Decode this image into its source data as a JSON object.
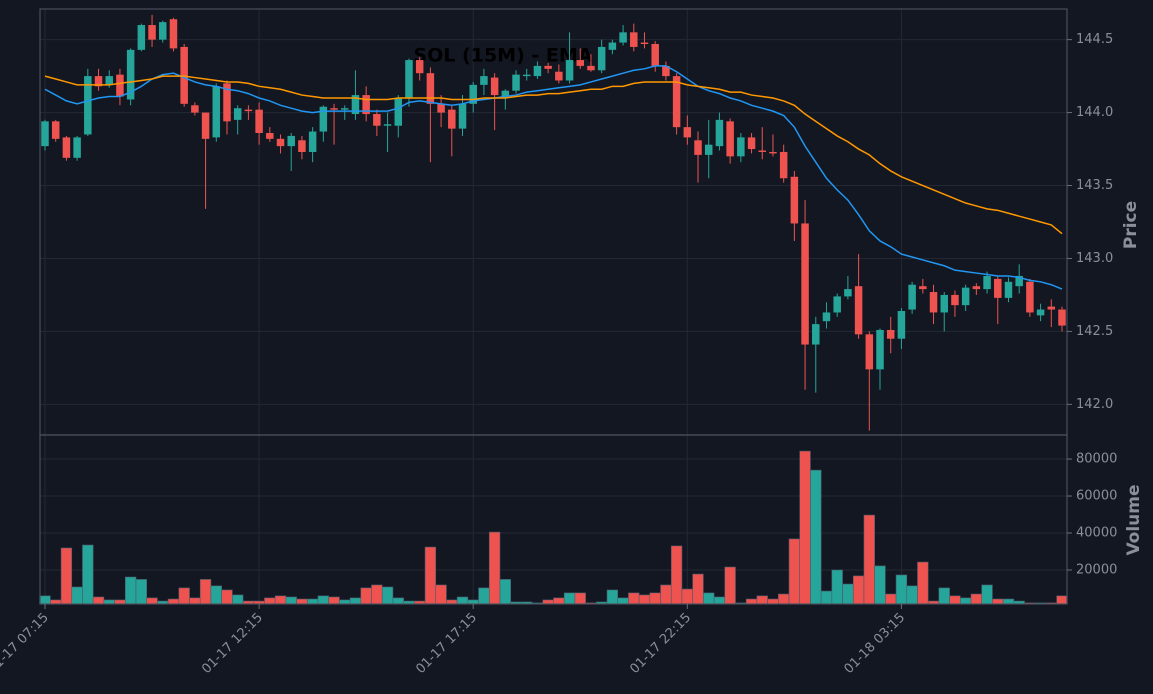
{
  "chart_data": {
    "type": "candlestick",
    "title": "SOL (15M) - EMA",
    "ylabel": "Price",
    "up_color": "#26a69a",
    "down_color": "#ef5350",
    "grid": true,
    "categories": [
      "01-17 07:15",
      null,
      null,
      null,
      null,
      null,
      null,
      null,
      null,
      null,
      null,
      null,
      null,
      null,
      null,
      null,
      null,
      null,
      null,
      null,
      "01-17 12:15",
      null,
      null,
      null,
      null,
      null,
      null,
      null,
      null,
      null,
      null,
      null,
      null,
      null,
      null,
      null,
      null,
      null,
      null,
      null,
      "01-17 17:15",
      null,
      null,
      null,
      null,
      null,
      null,
      null,
      null,
      null,
      null,
      null,
      null,
      null,
      null,
      null,
      null,
      null,
      null,
      null,
      "01-17 22:15",
      null,
      null,
      null,
      null,
      null,
      null,
      null,
      null,
      null,
      null,
      null,
      null,
      null,
      null,
      null,
      null,
      null,
      null,
      null,
      "01-18 03:15",
      null,
      null,
      null,
      null,
      null,
      null,
      null,
      null,
      null,
      null,
      null,
      null,
      null,
      null,
      null
    ],
    "open": [
      143.77,
      143.94,
      143.83,
      143.69,
      143.85,
      144.25,
      144.19,
      144.26,
      144.09,
      144.43,
      144.6,
      144.5,
      144.64,
      144.45,
      144.05,
      144.0,
      143.83,
      144.2,
      143.95,
      144.02,
      144.02,
      143.86,
      143.82,
      143.77,
      143.81,
      143.73,
      143.87,
      144.03,
      144.02,
      143.99,
      144.12,
      143.99,
      143.91,
      143.91,
      144.1,
      144.36,
      144.27,
      144.06,
      144.02,
      143.89,
      144.06,
      144.19,
      144.24,
      144.11,
      144.15,
      144.25,
      144.25,
      144.32,
      144.28,
      144.22,
      144.36,
      144.32,
      144.29,
      144.43,
      144.48,
      144.55,
      144.48,
      144.47,
      144.32,
      144.25,
      143.9,
      143.81,
      143.71,
      143.77,
      143.94,
      143.7,
      143.83,
      143.74,
      143.73,
      143.73,
      143.56,
      143.24,
      142.41,
      142.57,
      142.63,
      142.74,
      142.81,
      142.48,
      142.24,
      142.51,
      142.45,
      142.65,
      142.81,
      142.77,
      142.63,
      142.75,
      142.68,
      142.81,
      142.79,
      142.86,
      142.73,
      142.81,
      142.84,
      142.61,
      142.67,
      142.65
    ],
    "high": [
      143.95,
      143.95,
      143.84,
      143.84,
      144.3,
      144.3,
      144.29,
      144.3,
      144.44,
      144.61,
      144.67,
      144.63,
      144.65,
      144.47,
      144.07,
      144.0,
      144.2,
      144.22,
      144.05,
      144.05,
      144.07,
      143.9,
      143.85,
      143.86,
      143.84,
      143.9,
      144.05,
      144.06,
      144.05,
      144.29,
      144.18,
      144.02,
      144.0,
      144.12,
      144.37,
      144.38,
      144.31,
      144.12,
      144.05,
      144.12,
      144.21,
      144.3,
      144.27,
      144.16,
      144.29,
      144.3,
      144.35,
      144.34,
      144.33,
      144.55,
      144.44,
      144.4,
      144.5,
      144.5,
      144.6,
      144.61,
      144.55,
      144.49,
      144.35,
      144.27,
      143.98,
      143.87,
      143.95,
      144.0,
      143.96,
      143.86,
      143.86,
      143.9,
      143.85,
      143.78,
      143.6,
      143.4,
      142.6,
      142.7,
      142.76,
      142.88,
      143.03,
      142.5,
      142.52,
      142.6,
      142.66,
      142.84,
      142.86,
      142.82,
      142.77,
      142.78,
      142.82,
      142.83,
      142.91,
      142.88,
      142.87,
      142.96,
      142.86,
      142.69,
      142.72,
      142.67
    ],
    "low": [
      143.74,
      143.8,
      143.67,
      143.67,
      143.84,
      144.15,
      144.17,
      144.05,
      144.05,
      144.42,
      144.45,
      144.48,
      144.42,
      144.04,
      143.98,
      143.34,
      143.8,
      143.85,
      143.85,
      143.95,
      143.78,
      143.8,
      143.72,
      143.6,
      143.68,
      143.66,
      143.8,
      143.78,
      143.95,
      143.95,
      143.94,
      143.84,
      143.73,
      143.83,
      144.04,
      144.22,
      143.66,
      143.9,
      143.7,
      143.84,
      144.0,
      144.12,
      143.88,
      144.02,
      144.13,
      144.22,
      144.23,
      144.27,
      144.2,
      144.2,
      144.3,
      144.28,
      144.27,
      144.4,
      144.46,
      144.42,
      144.44,
      144.28,
      144.22,
      143.85,
      143.78,
      143.52,
      143.55,
      143.74,
      143.65,
      143.66,
      143.72,
      143.68,
      143.7,
      143.52,
      143.12,
      142.1,
      142.08,
      142.52,
      142.6,
      142.72,
      142.45,
      141.82,
      142.1,
      142.35,
      142.38,
      142.62,
      142.76,
      142.55,
      142.5,
      142.6,
      142.64,
      142.75,
      142.76,
      142.55,
      142.7,
      142.76,
      142.6,
      142.57,
      142.53,
      142.5
    ],
    "close": [
      143.94,
      143.82,
      143.69,
      143.83,
      144.25,
      144.18,
      144.25,
      144.11,
      144.43,
      144.6,
      144.5,
      144.62,
      144.44,
      144.06,
      144.0,
      143.82,
      144.18,
      143.94,
      144.03,
      144.01,
      143.86,
      143.82,
      143.77,
      143.84,
      143.73,
      143.87,
      144.04,
      144.02,
      144.03,
      144.12,
      143.99,
      143.91,
      143.92,
      144.1,
      144.36,
      144.27,
      144.06,
      144.0,
      143.89,
      144.06,
      144.19,
      144.25,
      144.12,
      144.15,
      144.26,
      144.26,
      144.32,
      144.3,
      144.22,
      144.36,
      144.32,
      144.29,
      144.45,
      144.48,
      144.55,
      144.45,
      144.47,
      144.32,
      144.25,
      143.9,
      143.83,
      143.71,
      143.78,
      143.95,
      143.7,
      143.83,
      143.75,
      143.73,
      143.72,
      143.55,
      143.24,
      142.41,
      142.55,
      142.63,
      142.74,
      142.79,
      142.48,
      142.24,
      142.51,
      142.45,
      142.64,
      142.82,
      142.79,
      142.63,
      142.75,
      142.68,
      142.8,
      142.79,
      142.88,
      142.73,
      142.84,
      142.88,
      142.63,
      142.65,
      142.65,
      142.54
    ],
    "series": [
      {
        "color": "#2196f3",
        "values": [
          144.16,
          144.12,
          144.08,
          144.06,
          144.08,
          144.1,
          144.11,
          144.11,
          144.14,
          144.18,
          144.23,
          144.26,
          144.27,
          144.24,
          144.21,
          144.19,
          144.18,
          144.16,
          144.15,
          144.13,
          144.1,
          144.08,
          144.05,
          144.03,
          144.01,
          144.0,
          144.01,
          144.01,
          144.01,
          144.01,
          144.01,
          144.01,
          144.01,
          144.03,
          144.07,
          144.08,
          144.07,
          144.06,
          144.05,
          144.06,
          144.08,
          144.09,
          144.1,
          144.11,
          144.12,
          144.14,
          144.15,
          144.16,
          144.17,
          144.18,
          144.19,
          144.21,
          144.23,
          144.25,
          144.27,
          144.29,
          144.3,
          144.32,
          144.32,
          144.28,
          144.23,
          144.18,
          144.15,
          144.13,
          144.1,
          144.08,
          144.05,
          144.03,
          144.01,
          143.98,
          143.9,
          143.77,
          143.66,
          143.55,
          143.47,
          143.4,
          143.3,
          143.19,
          143.12,
          143.08,
          143.03,
          143.01,
          142.99,
          142.97,
          142.95,
          142.92,
          142.91,
          142.9,
          142.89,
          142.88,
          142.88,
          142.87,
          142.85,
          142.84,
          142.82,
          142.79
        ]
      },
      {
        "color": "#ff9800",
        "values": [
          144.25,
          144.23,
          144.21,
          144.19,
          144.19,
          144.19,
          144.19,
          144.2,
          144.21,
          144.22,
          144.23,
          144.25,
          144.25,
          144.25,
          144.24,
          144.23,
          144.22,
          144.21,
          144.21,
          144.2,
          144.18,
          144.17,
          144.16,
          144.14,
          144.12,
          144.11,
          144.1,
          144.1,
          144.1,
          144.1,
          144.09,
          144.09,
          144.09,
          144.1,
          144.1,
          144.1,
          144.1,
          144.1,
          144.09,
          144.09,
          144.09,
          144.1,
          144.1,
          144.1,
          144.11,
          144.12,
          144.12,
          144.13,
          144.13,
          144.14,
          144.15,
          144.16,
          144.16,
          144.18,
          144.18,
          144.2,
          144.21,
          144.21,
          144.21,
          144.21,
          144.19,
          144.18,
          144.17,
          144.16,
          144.14,
          144.14,
          144.12,
          144.11,
          144.1,
          144.08,
          144.05,
          143.99,
          143.94,
          143.89,
          143.84,
          143.8,
          143.75,
          143.71,
          143.65,
          143.6,
          143.56,
          143.53,
          143.5,
          143.47,
          143.44,
          143.41,
          143.38,
          143.36,
          143.34,
          143.33,
          143.31,
          143.29,
          143.27,
          143.25,
          143.23,
          143.17
        ]
      }
    ],
    "ylim": [
      141.79,
      144.71
    ],
    "yticks": [
      {
        "value": 142,
        "label": "142.0"
      },
      142.5,
      {
        "value": 143,
        "label": "143.0"
      },
      143.5,
      {
        "value": 144,
        "label": "144.0"
      },
      144.5
    ],
    "volume": {
      "ylabel": "Volume",
      "ylim": [
        1600,
        93000
      ],
      "yticks": [
        20000,
        40000,
        60000,
        80000
      ],
      "values": [
        6000,
        3800,
        31900,
        10800,
        33500,
        5400,
        3800,
        3800,
        16200,
        14900,
        4900,
        3200,
        4300,
        10300,
        4900,
        14900,
        11400,
        9200,
        6500,
        3200,
        3200,
        4900,
        6000,
        5400,
        4300,
        4300,
        6000,
        5400,
        3800,
        4900,
        10300,
        11900,
        10800,
        4900,
        3200,
        3200,
        32400,
        11900,
        3800,
        5400,
        3800,
        10300,
        40500,
        14900,
        2700,
        2700,
        2200,
        3800,
        4900,
        7600,
        7600,
        2200,
        2700,
        9200,
        4900,
        7600,
        6500,
        7600,
        11900,
        33000,
        9700,
        17800,
        7600,
        5400,
        21600,
        2200,
        4300,
        6000,
        4300,
        7000,
        36800,
        84300,
        74000,
        8600,
        20000,
        12400,
        16800,
        49700,
        22200,
        7000,
        17300,
        11400,
        24300,
        3200,
        10300,
        6000,
        4900,
        7000,
        11900,
        4300,
        4300,
        3200,
        2200,
        2200,
        2200,
        6000
      ]
    }
  }
}
